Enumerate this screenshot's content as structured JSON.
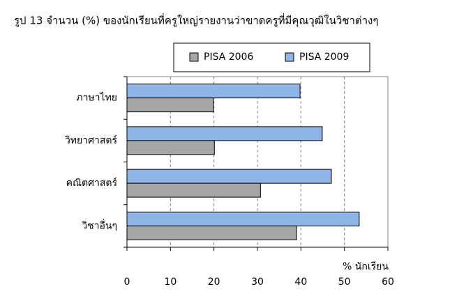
{
  "chart_data": {
    "type": "hbar",
    "title": "รูป 13  จำนวน (%) ของนักเรียนที่ครูใหญ่รายงานว่าขาดครูที่มีคุณวุฒิในวิชาต่างๆ",
    "categories": [
      "ภาษาไทย",
      "วิทยาศาสตร์",
      "คณิตศาสตร์",
      "วิชาอื่นๆ"
    ],
    "series": [
      {
        "name": "PISA 2006",
        "color": "#a6a6a6",
        "values": [
          19.9,
          20.1,
          30.7,
          39.0
        ]
      },
      {
        "name": "PISA 2009",
        "color": "#8fb4e6",
        "values": [
          39.8,
          44.9,
          47.0,
          53.4
        ]
      }
    ],
    "xlabel": "% นักเรียน",
    "xlim": [
      0,
      60
    ],
    "xticks": [
      0,
      10,
      20,
      30,
      40,
      50,
      60
    ],
    "grid": true,
    "legend": "top"
  }
}
